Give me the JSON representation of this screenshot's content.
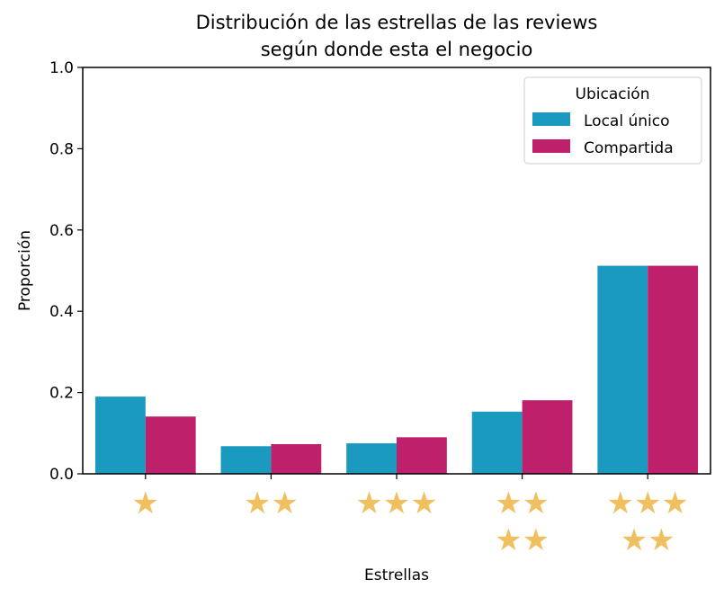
{
  "chart_data": {
    "type": "bar",
    "title_lines": [
      "Distribución de las estrellas de las reviews",
      "según donde esta el negocio"
    ],
    "xlabel": "Estrellas",
    "ylabel": "Proporción",
    "ylim": [
      0,
      1.0
    ],
    "yticks": [
      "0.0",
      "0.2",
      "0.4",
      "0.6",
      "0.8",
      "1.0"
    ],
    "categories": [
      "★",
      "★★",
      "★★★",
      "★★\n★★",
      "★★★\n★★"
    ],
    "category_lines": [
      [
        "★"
      ],
      [
        "★★"
      ],
      [
        "★★★"
      ],
      [
        "★★",
        "★★"
      ],
      [
        "★★★",
        "★★"
      ]
    ],
    "series": [
      {
        "name": "Local único",
        "color": "#1b9ac0",
        "values": [
          0.19,
          0.068,
          0.075,
          0.153,
          0.512
        ]
      },
      {
        "name": "Compartida",
        "color": "#be206b",
        "values": [
          0.141,
          0.073,
          0.09,
          0.181,
          0.512
        ]
      }
    ],
    "legend": {
      "title": "Ubicación",
      "placement": "top-right"
    },
    "grid": false,
    "star_color": "#f0c060"
  }
}
